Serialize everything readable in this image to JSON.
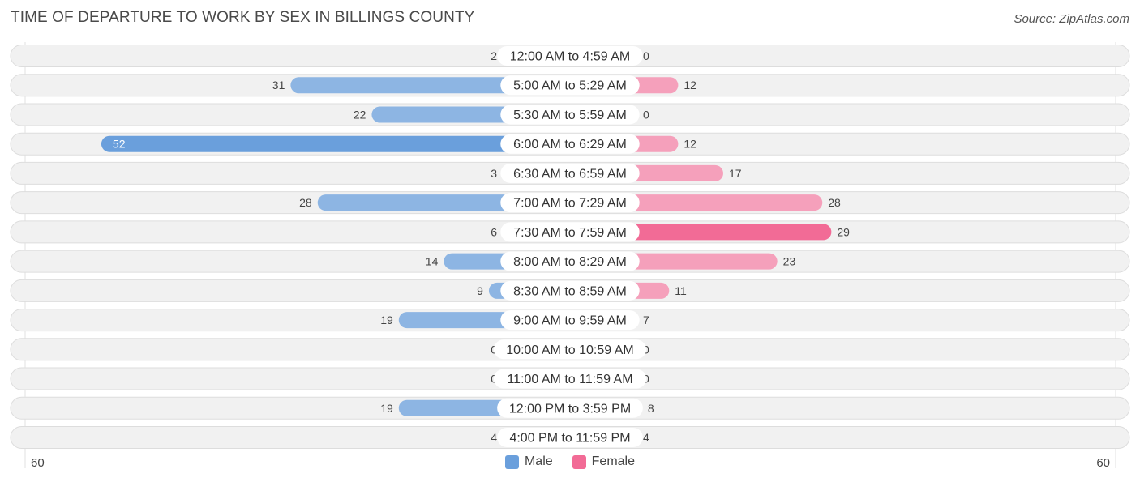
{
  "title": "TIME OF DEPARTURE TO WORK BY SEX IN BILLINGS COUNTY",
  "source": "Source: ZipAtlas.com",
  "colors": {
    "male_bar": "#8db5e3",
    "male_bar_max": "#6a9fdc",
    "female_bar": "#f5a0bb",
    "female_bar_max": "#f26b96",
    "row_background": "#f1f1f1",
    "row_border": "#dddddd"
  },
  "chart_data": {
    "type": "bar",
    "orientation": "horizontal-diverging",
    "categories": [
      "12:00 AM to 4:59 AM",
      "5:00 AM to 5:29 AM",
      "5:30 AM to 5:59 AM",
      "6:00 AM to 6:29 AM",
      "6:30 AM to 6:59 AM",
      "7:00 AM to 7:29 AM",
      "7:30 AM to 7:59 AM",
      "8:00 AM to 8:29 AM",
      "8:30 AM to 8:59 AM",
      "9:00 AM to 9:59 AM",
      "10:00 AM to 10:59 AM",
      "11:00 AM to 11:59 AM",
      "12:00 PM to 3:59 PM",
      "4:00 PM to 11:59 PM"
    ],
    "series": [
      {
        "name": "Male",
        "values": [
          2,
          31,
          22,
          52,
          3,
          28,
          6,
          14,
          9,
          19,
          0,
          0,
          19,
          4
        ]
      },
      {
        "name": "Female",
        "values": [
          0,
          12,
          0,
          12,
          17,
          28,
          29,
          23,
          11,
          7,
          0,
          0,
          8,
          4
        ]
      }
    ],
    "axis_min_label": "60",
    "axis_max_label": "60",
    "xlim": [
      -60,
      60
    ],
    "legend": [
      "Male",
      "Female"
    ],
    "legend_position": "bottom-center",
    "grid": false
  }
}
